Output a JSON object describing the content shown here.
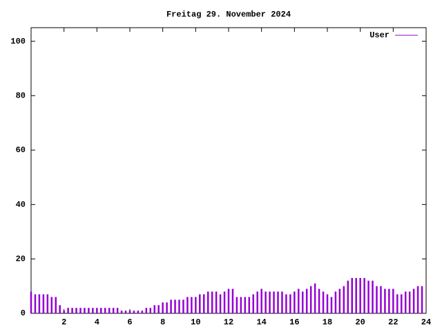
{
  "chart_data": {
    "type": "impulse",
    "title": "Freitag 29. November 2024",
    "series": [
      {
        "name": "User",
        "color": "#9400d3",
        "x": [
          0,
          0.25,
          0.5,
          0.75,
          1,
          1.25,
          1.5,
          1.75,
          2,
          2.25,
          2.5,
          2.75,
          3,
          3.25,
          3.5,
          3.75,
          4,
          4.25,
          4.5,
          4.75,
          5,
          5.25,
          5.5,
          5.75,
          6,
          6.25,
          6.5,
          6.75,
          7,
          7.25,
          7.5,
          7.75,
          8,
          8.25,
          8.5,
          8.75,
          9,
          9.25,
          9.5,
          9.75,
          10,
          10.25,
          10.5,
          10.75,
          11,
          11.25,
          11.5,
          11.75,
          12,
          12.25,
          12.5,
          12.75,
          13,
          13.25,
          13.5,
          13.75,
          14,
          14.25,
          14.5,
          14.75,
          15,
          15.25,
          15.5,
          15.75,
          16,
          16.25,
          16.5,
          16.75,
          17,
          17.25,
          17.5,
          17.75,
          18,
          18.25,
          18.5,
          18.75,
          19,
          19.25,
          19.5,
          19.75,
          20,
          20.25,
          20.5,
          20.75,
          21,
          21.25,
          21.5,
          21.75,
          22,
          22.25,
          22.5,
          22.75,
          23,
          23.25,
          23.5,
          23.75
        ],
        "values": [
          8,
          7,
          7,
          7,
          7,
          6,
          6,
          3,
          1,
          2,
          2,
          2,
          2,
          2,
          2,
          2,
          2,
          2,
          2,
          2,
          2,
          2,
          1,
          1,
          1,
          1,
          1,
          1,
          2,
          2,
          3,
          3,
          4,
          4,
          5,
          5,
          5,
          5,
          6,
          6,
          6,
          7,
          7,
          8,
          8,
          8,
          7,
          8,
          9,
          9,
          6,
          6,
          6,
          6,
          7,
          8,
          9,
          8,
          8,
          8,
          8,
          8,
          7,
          7,
          8,
          9,
          8,
          9,
          10,
          11,
          9,
          8,
          7,
          6,
          8,
          9,
          10,
          12,
          13,
          13,
          13,
          13,
          12,
          12,
          10,
          10,
          9,
          9,
          9,
          7,
          7,
          8,
          8,
          9,
          10,
          10
        ]
      }
    ],
    "xlim": [
      0,
      24
    ],
    "xticks": [
      2,
      4,
      6,
      8,
      10,
      12,
      14,
      16,
      18,
      20,
      22,
      24
    ],
    "ylim": [
      0,
      105
    ],
    "yticks": [
      0,
      20,
      40,
      60,
      80,
      100
    ],
    "legend": "top-right"
  }
}
